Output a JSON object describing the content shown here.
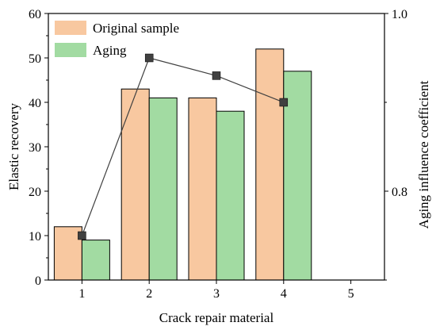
{
  "chart_data": {
    "type": "bar",
    "title": "",
    "xlabel": "Crack repair material",
    "ylabel": "Elastic recovery",
    "y2label": "Aging influence coefficient",
    "x_ticks": [
      "1",
      "2",
      "3",
      "4",
      "5"
    ],
    "categories": [
      "1",
      "2",
      "3",
      "4"
    ],
    "ylim": [
      0,
      60
    ],
    "y_ticks": [
      0,
      10,
      20,
      30,
      40,
      50,
      60
    ],
    "y2lim": [
      0.7,
      1.0
    ],
    "y2_ticks": [
      {
        "value": 0.8,
        "label": "0.8"
      },
      {
        "value": 1.0,
        "label": "1.0"
      }
    ],
    "grid": false,
    "legend_position": "top-left",
    "series": [
      {
        "name": "Original sample",
        "type": "bar",
        "axis": "left",
        "color": "#F8C8A0",
        "values": [
          12,
          43,
          41,
          52
        ]
      },
      {
        "name": "Aging",
        "type": "bar",
        "axis": "left",
        "color": "#A2DBA2",
        "values": [
          9,
          41,
          38,
          47
        ]
      },
      {
        "type": "line",
        "axis": "right",
        "color": "#404040",
        "marker": "square",
        "x": [
          1,
          2,
          3,
          4
        ],
        "values": [
          0.75,
          0.95,
          0.93,
          0.9
        ]
      }
    ]
  }
}
